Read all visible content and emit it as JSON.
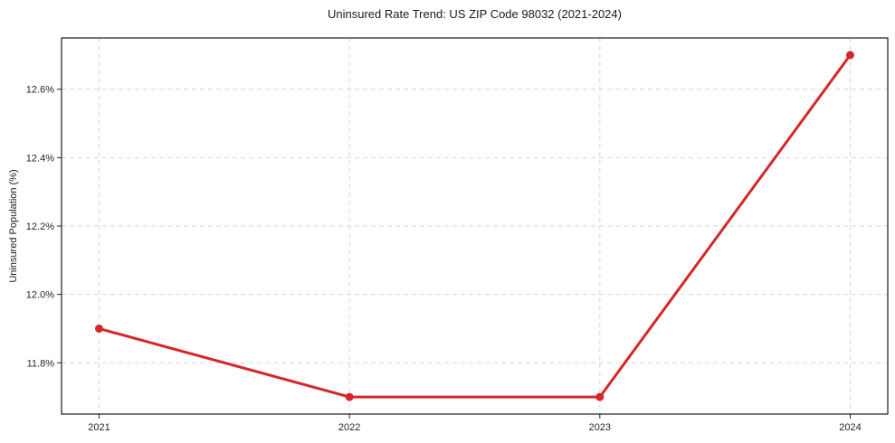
{
  "page": {
    "title": "Uninsured Rate Trend: US ZIP Code 98032 (2021-2024)"
  },
  "chart_data": {
    "type": "line",
    "title": "Uninsured Rate Trend: US ZIP Code 98032 (2021-2024)",
    "xlabel": "",
    "ylabel": "Uninsured Population (%)",
    "x": [
      2021,
      2022,
      2023,
      2024
    ],
    "series": [
      {
        "name": "Uninsured Population (%)",
        "values": [
          11.9,
          11.7,
          11.7,
          12.7
        ],
        "color": "#d62728",
        "marker": "circle",
        "line_width": 3,
        "marker_radius": 4.5
      }
    ],
    "xticks": {
      "values": [
        2021,
        2022,
        2023,
        2024
      ],
      "labels": [
        "2021",
        "2022",
        "2023",
        "2024"
      ]
    },
    "yticks": {
      "values": [
        11.8,
        12.0,
        12.2,
        12.4,
        12.6
      ],
      "labels": [
        "11.8%",
        "12.0%",
        "12.2%",
        "12.4%",
        "12.6%"
      ]
    },
    "xlim": [
      2020.85,
      2024.15
    ],
    "ylim": [
      11.65,
      12.75
    ],
    "grid": true,
    "grid_style": "dashed",
    "grid_color": "#d6d6d6",
    "spine_color": "#1a1a1a",
    "tick_color": "#262626",
    "background": "#ffffff",
    "legend": "none"
  }
}
